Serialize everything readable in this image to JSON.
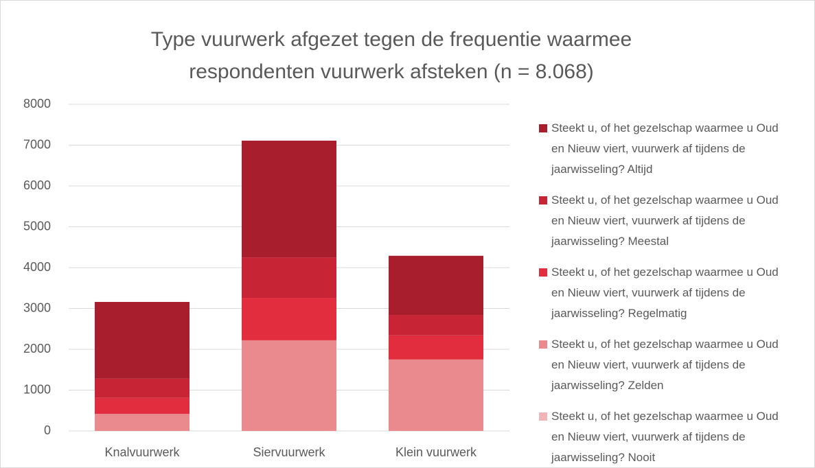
{
  "chart_data": {
    "type": "stacked_bar",
    "title": "Type vuurwerk afgezet tegen de frequentie waarmee respondenten vuurwerk afsteken (n = 8.068)",
    "categories": [
      "Knalvuurwerk",
      "Siervuurwerk",
      "Klein vuurwerk"
    ],
    "series": [
      {
        "name": "Steekt u, of het gezelschap waarmee u Oud en Nieuw viert, vuurwerk af tijdens de jaarwisseling? Altijd",
        "color": "#a91e2d",
        "values": [
          1880,
          2860,
          1450
        ]
      },
      {
        "name": "Steekt u, of het gezelschap waarmee u Oud en Nieuw viert, vuurwerk af tijdens de jaarwisseling? Meestal",
        "color": "#c72536",
        "values": [
          470,
          990,
          500
        ]
      },
      {
        "name": "Steekt u, of het gezelschap waarmee u Oud en Nieuw viert, vuurwerk af tijdens de jaarwisseling? Regelmatig",
        "color": "#e22d3e",
        "values": [
          390,
          1040,
          590
        ]
      },
      {
        "name": "Steekt u, of het gezelschap waarmee u Oud en Nieuw viert, vuurwerk af tijdens de jaarwisseling? Zelden",
        "color": "#eb8a8e",
        "values": [
          420,
          2220,
          1750
        ]
      },
      {
        "name": "Steekt u, of het gezelschap waarmee u Oud en Nieuw viert, vuurwerk af tijdens de jaarwisseling? Nooit",
        "color": "#f2b5b7",
        "values": [
          0,
          0,
          0
        ]
      }
    ],
    "ylim": [
      0,
      8000
    ],
    "yticks": [
      0,
      1000,
      2000,
      3000,
      4000,
      5000,
      6000,
      7000,
      8000
    ],
    "grid": true,
    "legend": "right"
  }
}
